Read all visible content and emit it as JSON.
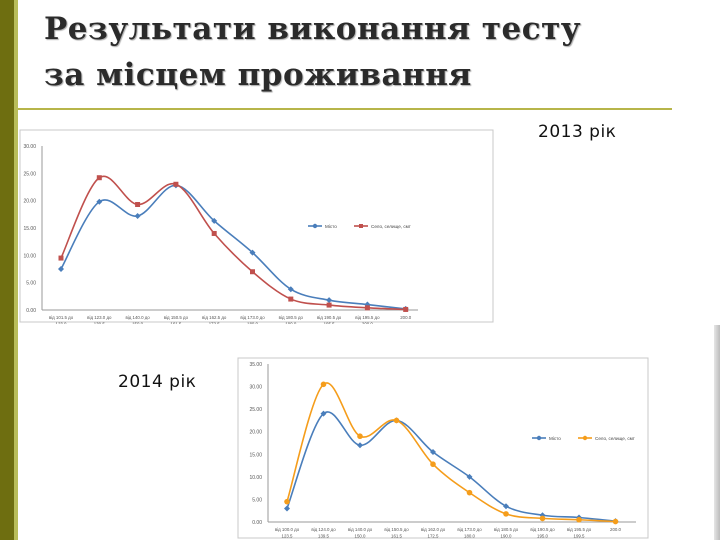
{
  "slide": {
    "title_line1": "Результати виконання тесту",
    "title_line2": "за місцем проживання"
  },
  "colors": {
    "accent_dark": "#6e6e10",
    "accent_light": "#b9bd5a",
    "series_city": "#4a7ebb",
    "series_village_2013": "#c0504d",
    "series_village_2014": "#f59d1b"
  },
  "chart_data": [
    {
      "type": "line",
      "label": "2013 рік",
      "categories": [
        "від 101.5 до 123.0",
        "від 123.0 до 139.5",
        "від 140.0 до 150.0",
        "від 150.5 до 161.5",
        "від 162.5 до 172.5",
        "від 173.0 до 180.0",
        "від 180.5 до 190.0",
        "від 190.5 до 195.5",
        "від 195.5 до 200.0",
        "200.0"
      ],
      "y_ticks": [
        "0.00",
        "5.00",
        "10.00",
        "15.00",
        "20.00",
        "25.00",
        "30.00"
      ],
      "ylim": [
        0,
        30
      ],
      "grid": false,
      "legend_position": "right",
      "series": [
        {
          "name": "Місто",
          "values": [
            7.5,
            19.8,
            17.2,
            22.8,
            16.3,
            10.5,
            3.8,
            1.8,
            1.0,
            0.2
          ]
        },
        {
          "name": "Село, селище, смт",
          "values": [
            9.5,
            24.2,
            19.3,
            23.0,
            14.0,
            7.0,
            2.0,
            0.9,
            0.4,
            0.1
          ]
        }
      ]
    },
    {
      "type": "line",
      "label": "2014 рік",
      "categories": [
        "від 100.0 до 123.5",
        "від 124.0 до 139.5",
        "від 140.0 до 150.0",
        "від 150.5 до 161.5",
        "від 162.0 до 172.5",
        "від 173.0 до 180.0",
        "від 180.5 до 190.0",
        "від 190.5 до 195.0",
        "від 195.5 до 199.5",
        "200.0"
      ],
      "y_ticks": [
        "0.00",
        "5.00",
        "10.00",
        "15.00",
        "20.00",
        "25.00",
        "30.00",
        "35.00"
      ],
      "ylim": [
        0,
        35
      ],
      "grid": false,
      "legend_position": "right",
      "series": [
        {
          "name": "Місто",
          "values": [
            3.0,
            24.0,
            17.0,
            22.5,
            15.5,
            10.0,
            3.5,
            1.5,
            1.0,
            0.2
          ]
        },
        {
          "name": "Село, селище, смт",
          "values": [
            4.5,
            30.5,
            19.0,
            22.5,
            12.8,
            6.5,
            1.8,
            0.8,
            0.5,
            0.1
          ]
        }
      ]
    }
  ]
}
